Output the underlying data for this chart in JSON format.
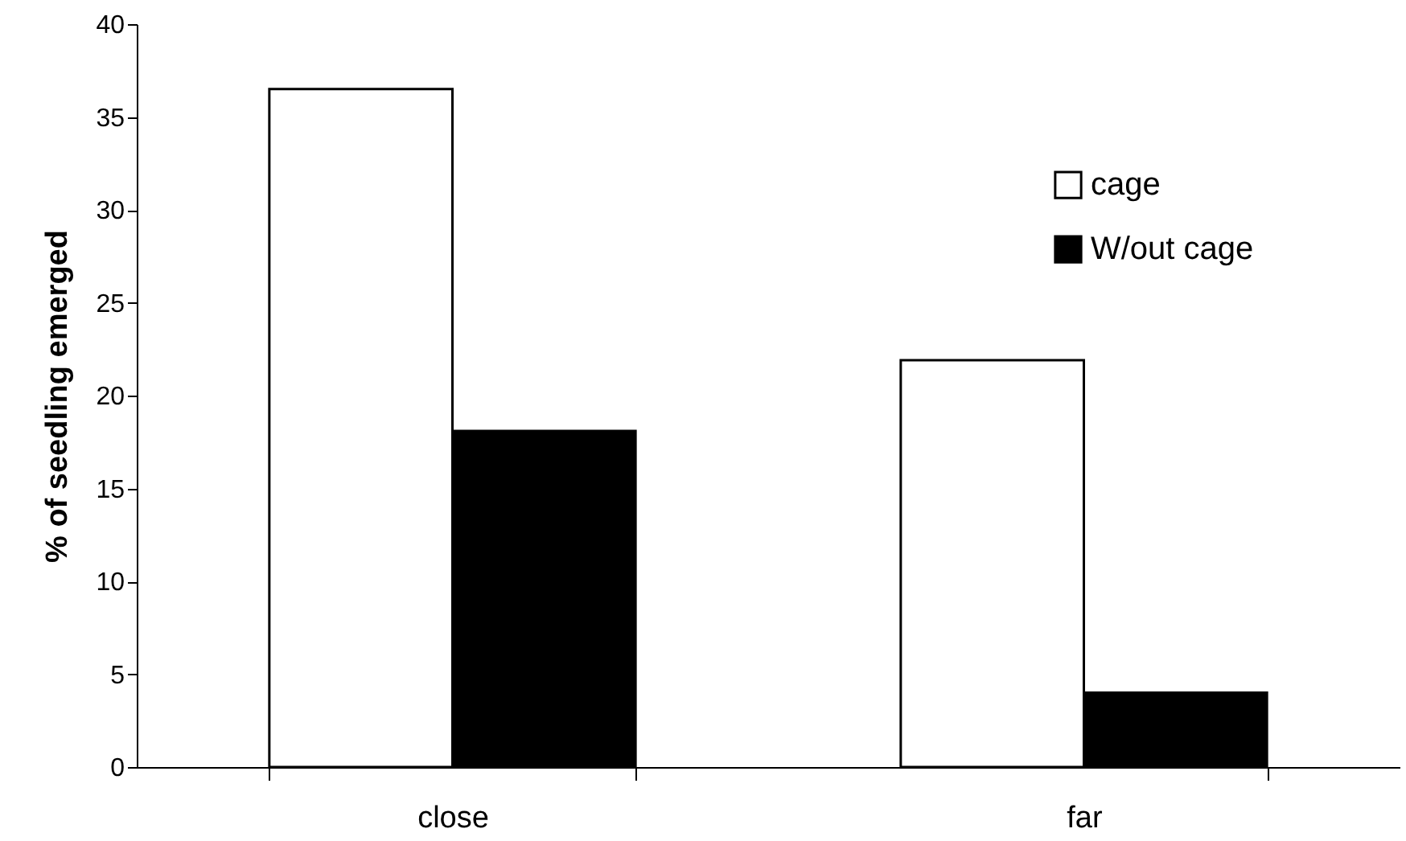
{
  "chart_data": {
    "type": "bar",
    "ylabel": "% of seedling emerged",
    "categories": [
      "close",
      "far"
    ],
    "series": [
      {
        "name": "cage",
        "color": "#ffffff",
        "values": [
          36.5,
          21.9
        ]
      },
      {
        "name": "W/out cage",
        "color": "#000000",
        "values": [
          18.1,
          4.0
        ]
      }
    ],
    "ylim": [
      0,
      40
    ],
    "yticks": [
      0,
      5,
      10,
      15,
      20,
      25,
      30,
      35,
      40
    ],
    "grid": false,
    "legend": "top right"
  }
}
